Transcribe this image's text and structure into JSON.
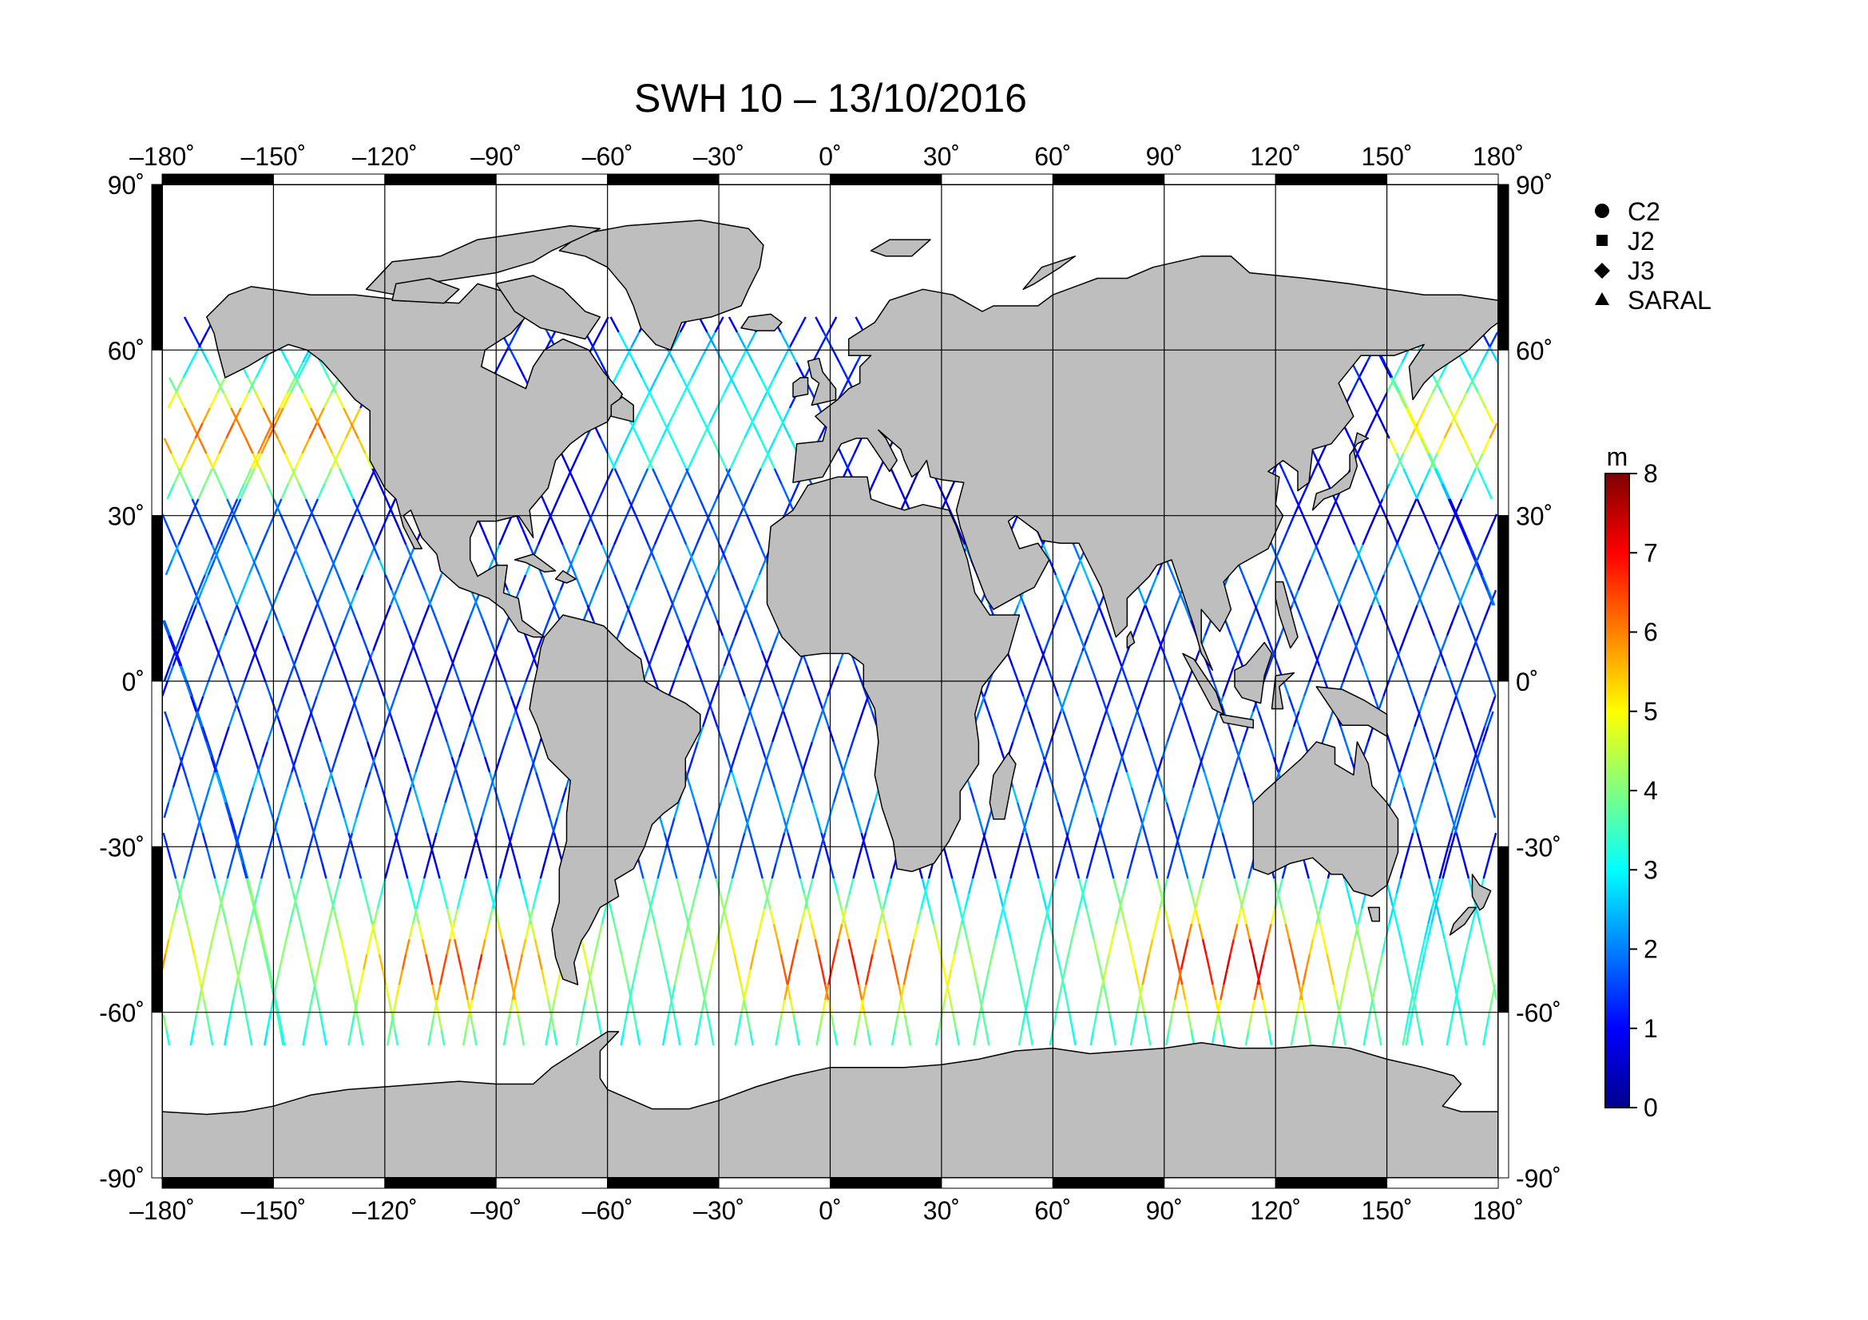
{
  "title": "SWH 10 – 13/10/2016",
  "map": {
    "lon_range": [
      -180,
      180
    ],
    "lat_range": [
      -90,
      90
    ],
    "grid": true,
    "lon_ticks": [
      {
        "value": -180,
        "label": "–180˚"
      },
      {
        "value": -150,
        "label": "–150˚"
      },
      {
        "value": -120,
        "label": "–120˚"
      },
      {
        "value": -90,
        "label": "–90˚"
      },
      {
        "value": -60,
        "label": "–60˚"
      },
      {
        "value": -30,
        "label": "–30˚"
      },
      {
        "value": 0,
        "label": "0˚"
      },
      {
        "value": 30,
        "label": "30˚"
      },
      {
        "value": 60,
        "label": "60˚"
      },
      {
        "value": 90,
        "label": "90˚"
      },
      {
        "value": 120,
        "label": "120˚"
      },
      {
        "value": 150,
        "label": "150˚"
      },
      {
        "value": 180,
        "label": "180˚"
      }
    ],
    "lat_ticks": [
      {
        "value": 90,
        "label_left": "90˚",
        "label_right": "90˚"
      },
      {
        "value": 60,
        "label_left": "60˚",
        "label_right": "60˚"
      },
      {
        "value": 30,
        "label_left": "30˚",
        "label_right": "30˚"
      },
      {
        "value": 0,
        "label_left": "0˚",
        "label_right": "0˚"
      },
      {
        "value": -30,
        "label_left": "-30˚",
        "label_right": "-30˚"
      },
      {
        "value": -60,
        "label_left": "-60˚",
        "label_right": "-60˚"
      },
      {
        "value": -90,
        "label_left": "-90˚",
        "label_right": "-90˚"
      }
    ],
    "land_color": "#bebebe",
    "ocean_color": "#ffffff"
  },
  "legend": {
    "items": [
      {
        "label": "C2",
        "symbol": "circle-icon"
      },
      {
        "label": "J2",
        "symbol": "square-icon"
      },
      {
        "label": "J3",
        "symbol": "diamond-icon"
      },
      {
        "label": "SARAL",
        "symbol": "triangle-icon"
      }
    ]
  },
  "colorbar": {
    "unit": "m",
    "min": 0,
    "max": 8,
    "ticks": [
      "0",
      "1",
      "2",
      "3",
      "4",
      "5",
      "6",
      "7",
      "8"
    ],
    "colormap": "jet",
    "colors": [
      "#00008f",
      "#0000ff",
      "#0080ff",
      "#00ffff",
      "#80ff80",
      "#ffff00",
      "#ff8000",
      "#ff0000",
      "#800000"
    ]
  },
  "chart_data": {
    "type": "scatter",
    "title": "SWH 10 – 13/10/2016",
    "xlabel": "",
    "ylabel": "",
    "xlim": [
      -180,
      180
    ],
    "ylim": [
      -90,
      90
    ],
    "colorbar_unit": "m",
    "clim": [
      0,
      8
    ],
    "series": [
      {
        "name": "C2"
      },
      {
        "name": "J2"
      },
      {
        "name": "J3"
      },
      {
        "name": "SARAL"
      }
    ],
    "typical_values": {
      "tropics": [
        1,
        2
      ],
      "north_pacific_40_50N": [
        3,
        6
      ],
      "southern_ocean_40_60S": [
        3,
        7
      ]
    }
  }
}
